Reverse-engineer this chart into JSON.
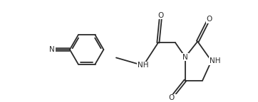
{
  "bg_color": "#ffffff",
  "line_color": "#2a2a2a",
  "font_color": "#2a2a2a",
  "lw": 1.3,
  "fs": 7.5,
  "figsize": [
    3.62,
    1.44
  ],
  "dpi": 100,
  "xlim": [
    0.0,
    9.5
  ],
  "ylim": [
    0.5,
    5.5
  ]
}
